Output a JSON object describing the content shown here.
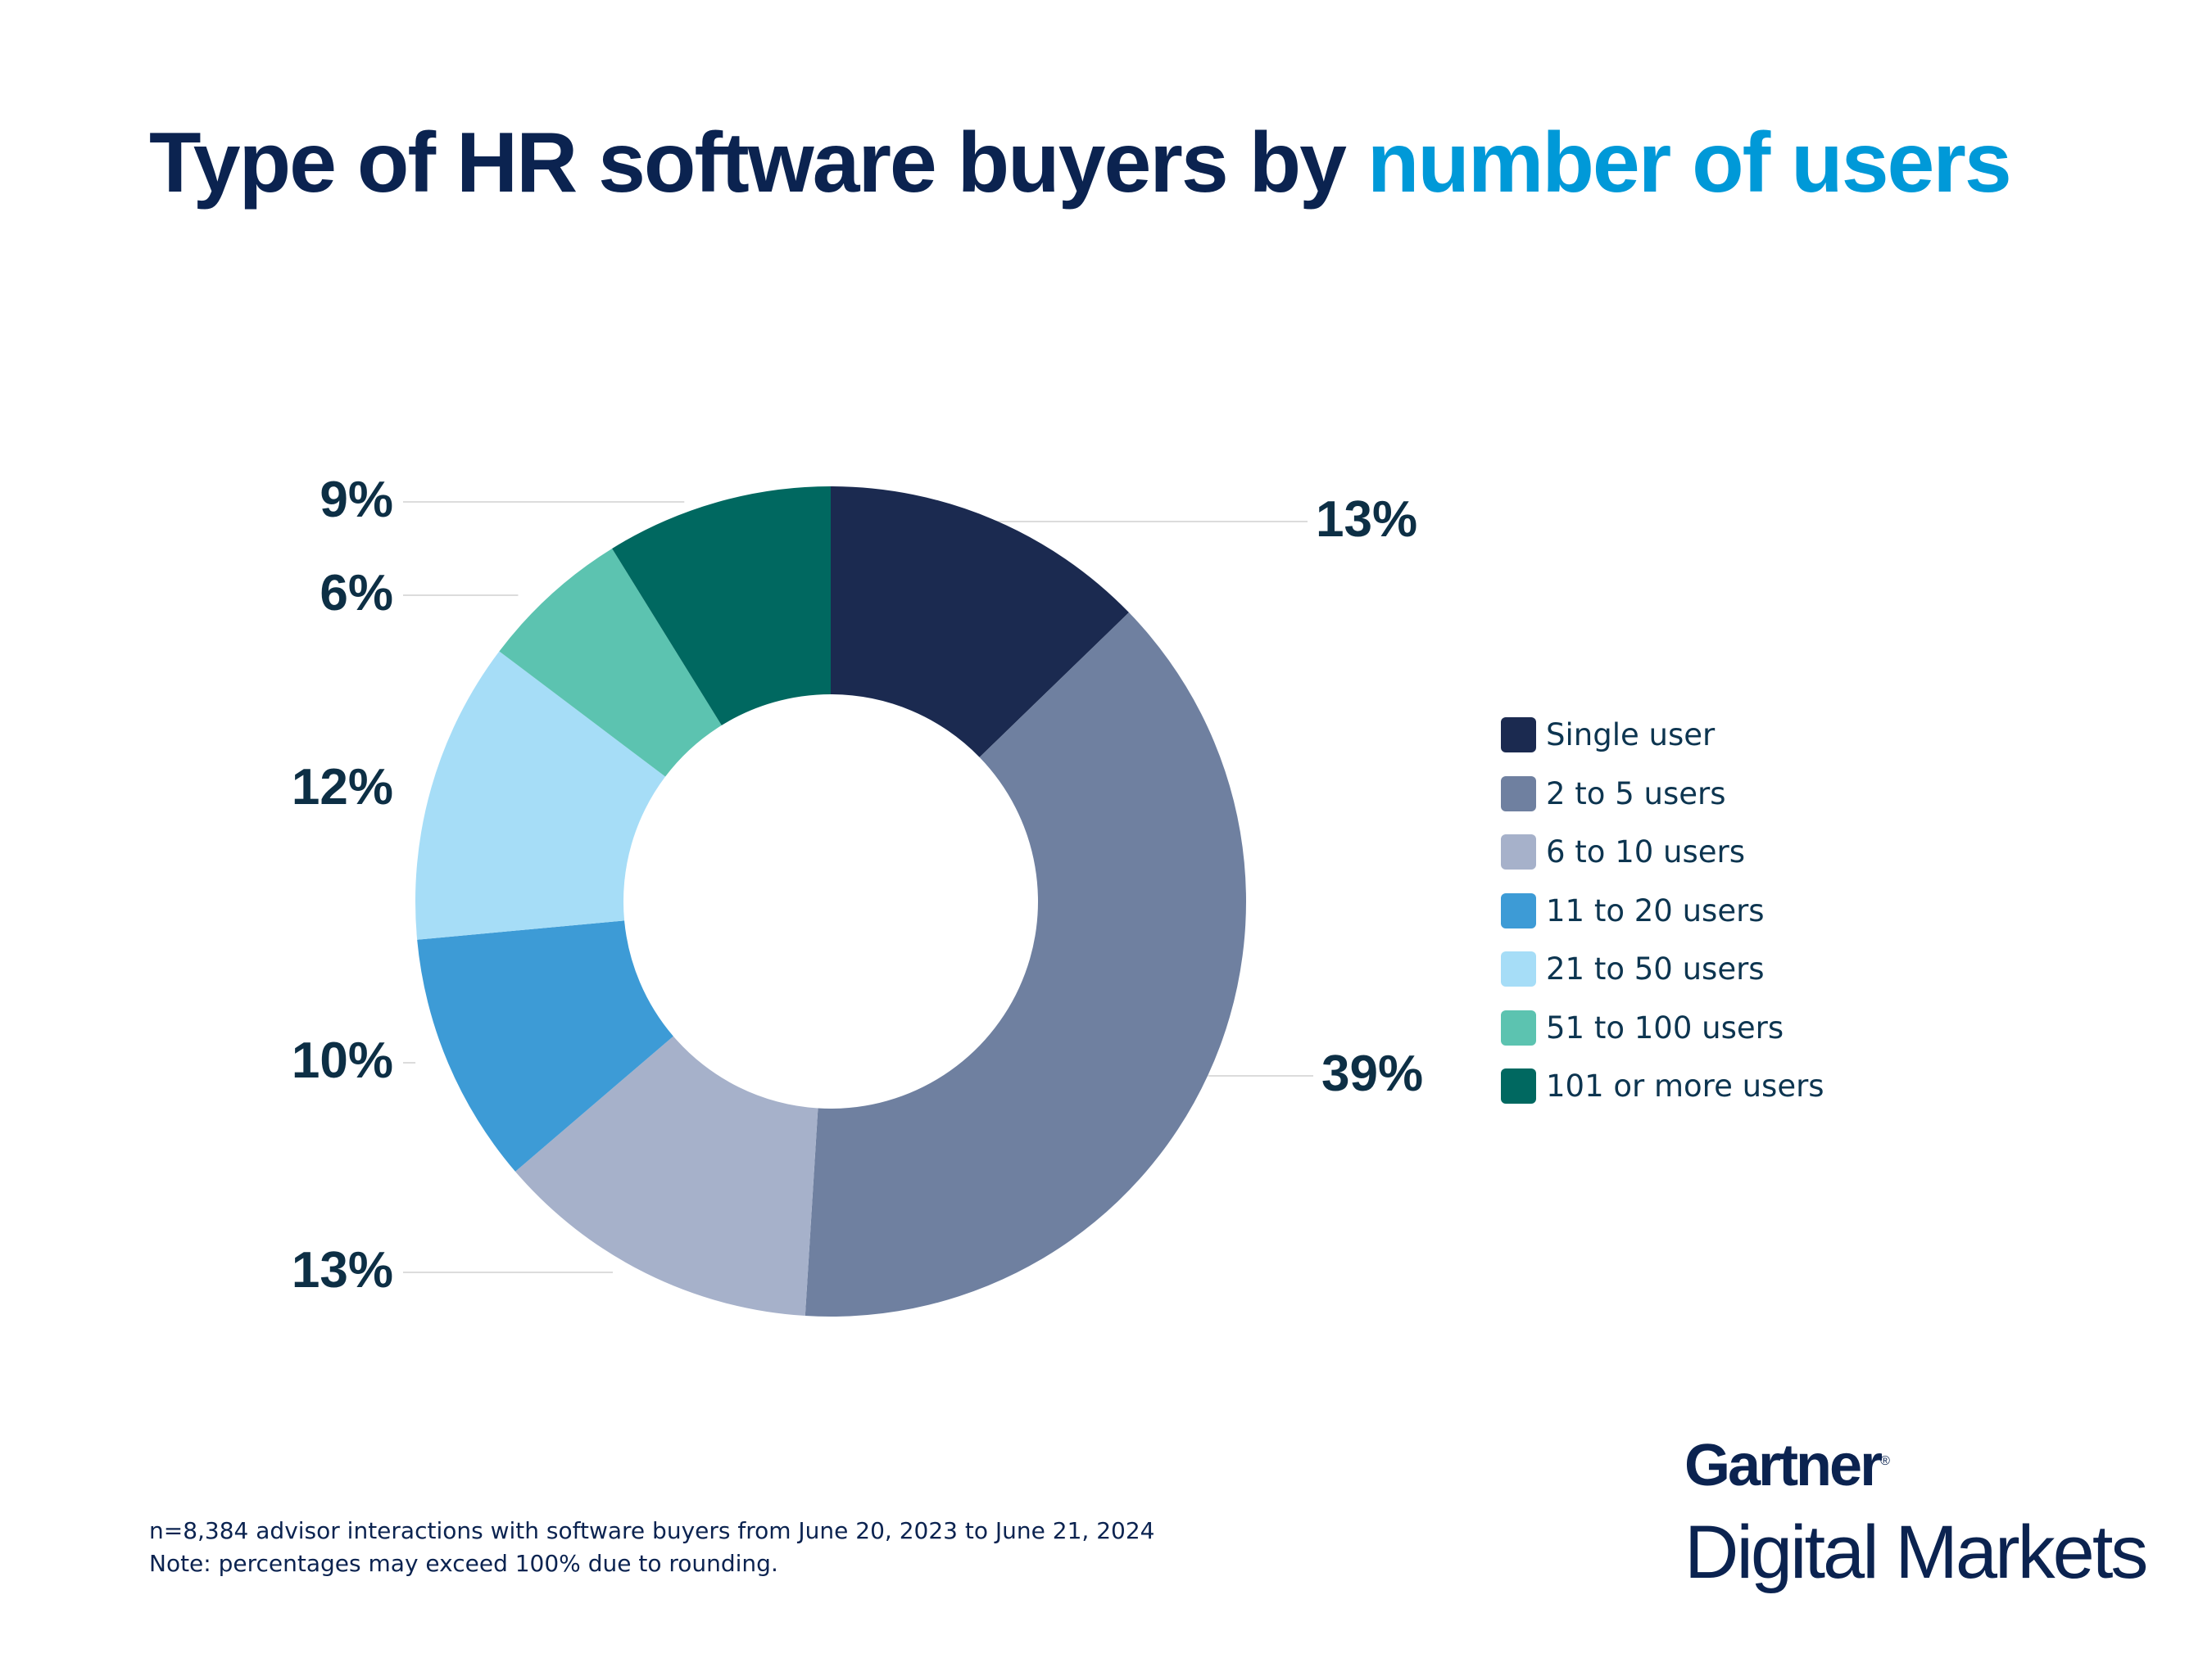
{
  "title": {
    "prefix": "Type of HR software buyers by ",
    "highlight": "number of users"
  },
  "chart_data": {
    "type": "pie",
    "variant": "donut",
    "start": "top, clockwise",
    "legend_position": "right",
    "categories": [
      "Single user",
      "2 to 5 users",
      "6 to 10 users",
      "11 to 20 users",
      "21 to 50 users",
      "51 to 100 users",
      "101 or more users"
    ],
    "values": [
      13,
      39,
      13,
      10,
      12,
      6,
      9
    ],
    "labels": [
      "13%",
      "39%",
      "13%",
      "10%",
      "12%",
      "6%",
      "9%"
    ],
    "colors": [
      "#1b2a50",
      "#6f80a0",
      "#a6b1ca",
      "#3d9bd6",
      "#a6ddf7",
      "#5cc3b0",
      "#006860"
    ]
  },
  "footer": {
    "line1": "n=8,384 advisor interactions with software buyers from June 20, 2023 to June 21, 2024",
    "line2": "Note: percentages may exceed 100% due to rounding."
  },
  "logo": {
    "brand": "Gartner",
    "reg": "®",
    "product": "Digital Markets"
  }
}
